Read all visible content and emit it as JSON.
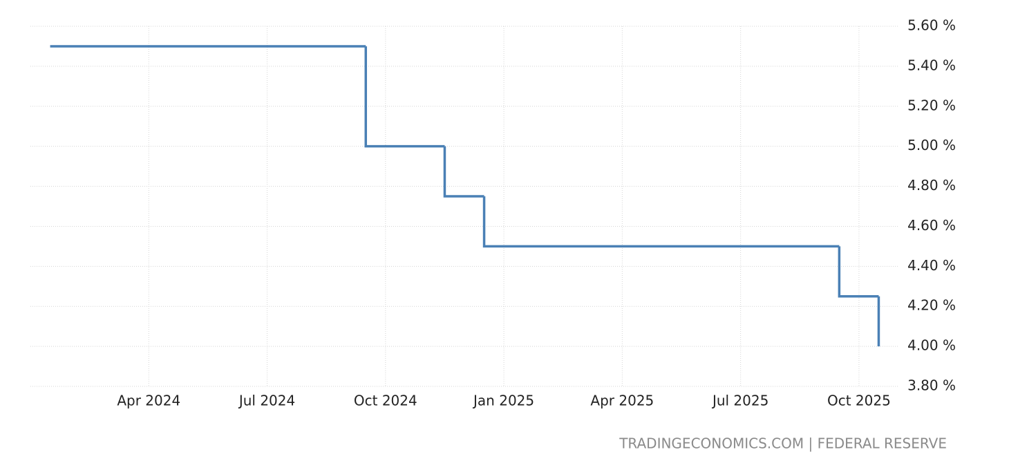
{
  "chart_data": {
    "type": "step-line",
    "x": [
      "2024-01",
      "2024-09",
      "2024-11",
      "2024-12",
      "2025-09",
      "2025-10"
    ],
    "values": [
      5.5,
      5.0,
      4.75,
      4.5,
      4.25,
      4.0
    ],
    "color": "#4a80b5",
    "xlim": [
      "2024-01",
      "2025-11"
    ],
    "xticks": [
      {
        "value": "2024-04",
        "label": "Apr 2024"
      },
      {
        "value": "2024-07",
        "label": "Jul 2024"
      },
      {
        "value": "2024-10",
        "label": "Oct 2024"
      },
      {
        "value": "2025-01",
        "label": "Jan 2025"
      },
      {
        "value": "2025-04",
        "label": "Apr 2025"
      },
      {
        "value": "2025-07",
        "label": "Jul 2025"
      },
      {
        "value": "2025-10",
        "label": "Oct 2025"
      }
    ],
    "ylim": [
      3.8,
      5.6
    ],
    "yticks": [
      {
        "value": 3.8,
        "label": "3.80 %"
      },
      {
        "value": 4.0,
        "label": "4.00 %"
      },
      {
        "value": 4.2,
        "label": "4.20 %"
      },
      {
        "value": 4.4,
        "label": "4.40 %"
      },
      {
        "value": 4.6,
        "label": "4.60 %"
      },
      {
        "value": 4.8,
        "label": "4.80 %"
      },
      {
        "value": 5.0,
        "label": "5.00 %"
      },
      {
        "value": 5.2,
        "label": "5.20 %"
      },
      {
        "value": 5.4,
        "label": "5.40 %"
      },
      {
        "value": 5.6,
        "label": "5.60 %"
      }
    ],
    "grid": true,
    "source": "TRADINGECONOMICS.COM | FEDERAL RESERVE"
  }
}
